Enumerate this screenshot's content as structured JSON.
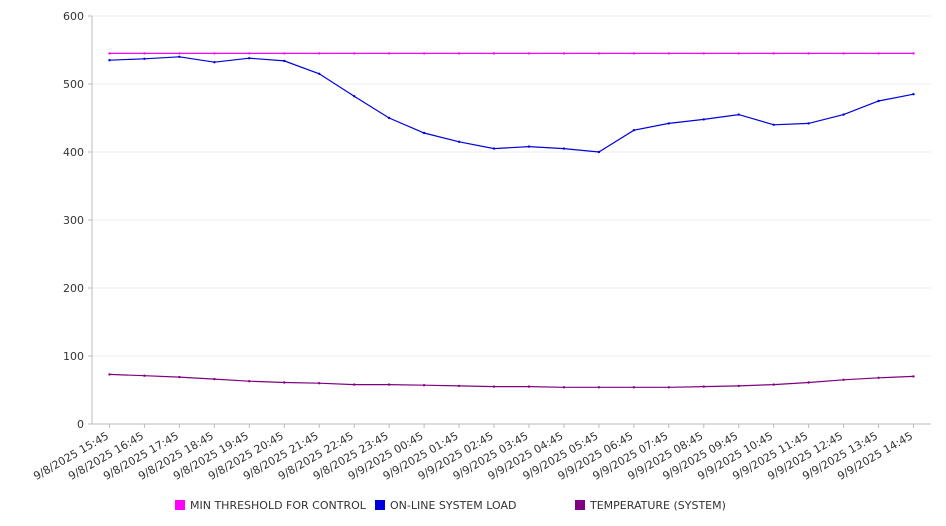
{
  "chart_data": {
    "type": "line",
    "title": "",
    "xlabel": "",
    "ylabel": "",
    "ylim": [
      0,
      600
    ],
    "y_ticks": [
      "0",
      "100",
      "200",
      "300",
      "400",
      "500",
      "600"
    ],
    "x_ticks": [
      "9/8/2025 15:45",
      "9/8/2025 16:45",
      "9/8/2025 17:45",
      "9/8/2025 18:45",
      "9/8/2025 19:45",
      "9/8/2025 20:45",
      "9/8/2025 21:45",
      "9/8/2025 22:45",
      "9/8/2025 23:45",
      "9/9/2025 00:45",
      "9/9/2025 01:45",
      "9/9/2025 02:45",
      "9/9/2025 03:45",
      "9/9/2025 04:45",
      "9/9/2025 05:45",
      "9/9/2025 06:45",
      "9/9/2025 07:45",
      "9/9/2025 08:45",
      "9/9/2025 09:45",
      "9/9/2025 10:45",
      "9/9/2025 11:45",
      "9/9/2025 12:45",
      "9/9/2025 13:45",
      "9/9/2025 14:45"
    ],
    "grid": true,
    "legend_position": "bottom",
    "series": [
      {
        "name": "MIN THRESHOLD FOR CONTROL",
        "color": "#ff00ff",
        "values": [
          545,
          545,
          545,
          545,
          545,
          545,
          545,
          545,
          545,
          545,
          545,
          545,
          545,
          545,
          545,
          545,
          545,
          545,
          545,
          545,
          545,
          545,
          545,
          545
        ]
      },
      {
        "name": "ON-LINE SYSTEM LOAD",
        "color": "#0000dd",
        "values": [
          535,
          537,
          540,
          532,
          538,
          534,
          515,
          482,
          450,
          428,
          415,
          405,
          408,
          405,
          400,
          432,
          442,
          448,
          455,
          440,
          442,
          455,
          475,
          485
        ]
      },
      {
        "name": "TEMPERATURE (SYSTEM)",
        "color": "#800080",
        "values": [
          73,
          71,
          69,
          66,
          63,
          61,
          60,
          58,
          58,
          57,
          56,
          55,
          55,
          54,
          54,
          54,
          54,
          55,
          56,
          58,
          61,
          65,
          68,
          70
        ]
      }
    ]
  }
}
